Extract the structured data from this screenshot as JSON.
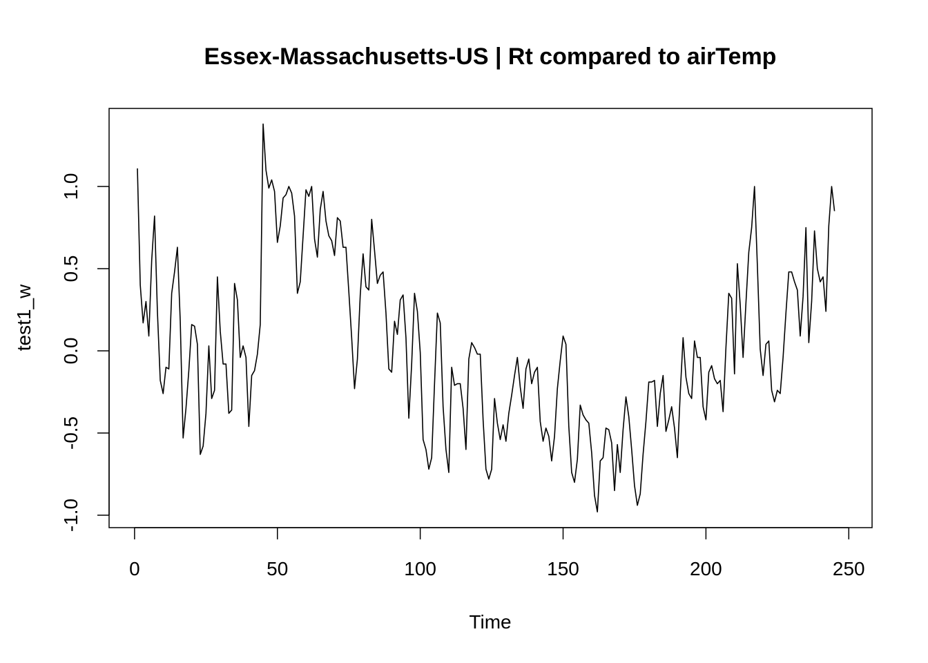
{
  "chart_data": {
    "type": "line",
    "title": "Essex-Massachusetts-US | Rt compared to airTemp",
    "xlabel": "Time",
    "ylabel": "test1_w",
    "xlim": [
      1,
      248
    ],
    "ylim": [
      -1.05,
      1.42
    ],
    "x_ticks": [
      0,
      50,
      100,
      150,
      200,
      250
    ],
    "x_tick_labels": [
      "0",
      "50",
      "100",
      "150",
      "200",
      "250"
    ],
    "y_ticks": [
      -1.0,
      -0.5,
      0.0,
      0.5,
      1.0
    ],
    "y_tick_labels": [
      "-1.0",
      "-0.5",
      "0.0",
      "0.5",
      "1.0"
    ],
    "grid": false,
    "line_color": "#000000",
    "series": [
      {
        "x_start": 1,
        "values": [
          1.11,
          0.4,
          0.17,
          0.3,
          0.09,
          0.55,
          0.82,
          0.24,
          -0.18,
          -0.26,
          -0.1,
          -0.11,
          0.35,
          0.48,
          0.63,
          0.18,
          -0.53,
          -0.35,
          -0.12,
          0.16,
          0.15,
          0.04,
          -0.63,
          -0.58,
          -0.38,
          0.03,
          -0.29,
          -0.24,
          0.45,
          0.12,
          -0.08,
          -0.08,
          -0.38,
          -0.36,
          0.41,
          0.31,
          -0.04,
          0.03,
          -0.04,
          -0.46,
          -0.15,
          -0.12,
          -0.02,
          0.16,
          1.38,
          1.1,
          0.99,
          1.04,
          0.97,
          0.66,
          0.76,
          0.93,
          0.95,
          1.0,
          0.96,
          0.82,
          0.35,
          0.42,
          0.7,
          0.98,
          0.94,
          1.0,
          0.68,
          0.57,
          0.86,
          0.97,
          0.79,
          0.7,
          0.67,
          0.58,
          0.81,
          0.79,
          0.63,
          0.63,
          0.36,
          0.08,
          -0.23,
          -0.05,
          0.34,
          0.59,
          0.39,
          0.37,
          0.8,
          0.61,
          0.41,
          0.46,
          0.48,
          0.23,
          -0.11,
          -0.13,
          0.18,
          0.1,
          0.31,
          0.34,
          0.08,
          -0.41,
          -0.08,
          0.35,
          0.24,
          -0.01,
          -0.54,
          -0.6,
          -0.72,
          -0.65,
          -0.2,
          0.23,
          0.17,
          -0.34,
          -0.6,
          -0.74,
          -0.1,
          -0.21,
          -0.2,
          -0.2,
          -0.35,
          -0.6,
          -0.05,
          0.05,
          0.02,
          -0.02,
          -0.02,
          -0.42,
          -0.72,
          -0.78,
          -0.72,
          -0.29,
          -0.44,
          -0.54,
          -0.45,
          -0.55,
          -0.38,
          -0.27,
          -0.15,
          -0.04,
          -0.22,
          -0.35,
          -0.11,
          -0.05,
          -0.2,
          -0.13,
          -0.1,
          -0.43,
          -0.55,
          -0.47,
          -0.52,
          -0.67,
          -0.52,
          -0.23,
          -0.06,
          0.09,
          0.04,
          -0.46,
          -0.74,
          -0.8,
          -0.66,
          -0.33,
          -0.39,
          -0.42,
          -0.44,
          -0.62,
          -0.88,
          -0.98,
          -0.67,
          -0.65,
          -0.47,
          -0.48,
          -0.56,
          -0.85,
          -0.57,
          -0.74,
          -0.48,
          -0.28,
          -0.4,
          -0.6,
          -0.82,
          -0.94,
          -0.87,
          -0.63,
          -0.43,
          -0.19,
          -0.19,
          -0.18,
          -0.46,
          -0.26,
          -0.15,
          -0.49,
          -0.42,
          -0.34,
          -0.47,
          -0.65,
          -0.26,
          0.08,
          -0.16,
          -0.26,
          -0.29,
          0.06,
          -0.04,
          -0.04,
          -0.34,
          -0.42,
          -0.13,
          -0.09,
          -0.17,
          -0.2,
          -0.18,
          -0.37,
          0.02,
          0.35,
          0.32,
          -0.14,
          0.53,
          0.28,
          -0.04,
          0.29,
          0.6,
          0.75,
          1.0,
          0.52,
          0.01,
          -0.15,
          0.04,
          0.06,
          -0.24,
          -0.31,
          -0.24,
          -0.26,
          -0.04,
          0.23,
          0.48,
          0.48,
          0.42,
          0.37,
          0.09,
          0.33,
          0.75,
          0.05,
          0.3,
          0.73,
          0.5,
          0.42,
          0.45,
          0.24,
          0.76,
          1.0,
          0.85
        ]
      }
    ]
  }
}
